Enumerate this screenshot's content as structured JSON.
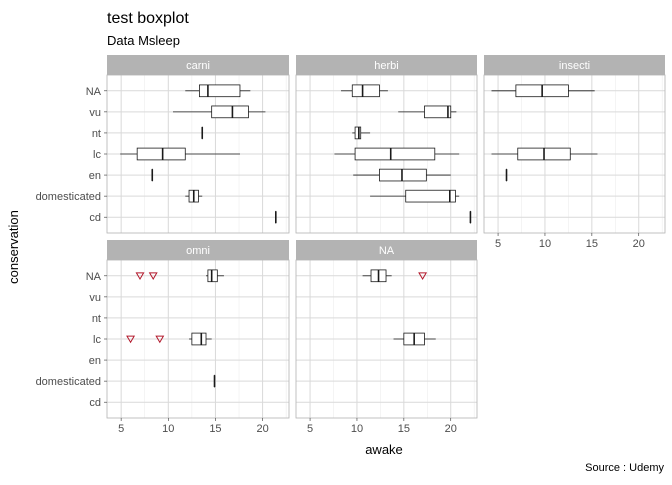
{
  "title": "test boxplot",
  "subtitle": "Data Msleep",
  "caption": "Source : Udemy",
  "chart_data": {
    "type": "boxplot",
    "orientation": "horizontal",
    "xlabel": "awake",
    "ylabel": "conservation",
    "xlim": [
      3.5,
      22.8
    ],
    "xticks": [
      5,
      10,
      15,
      20
    ],
    "xtick_labels": [
      "5",
      "10",
      "15",
      "20"
    ],
    "categories": [
      "NA",
      "vu",
      "nt",
      "lc",
      "en",
      "domesticated",
      "cd"
    ],
    "facets": [
      {
        "name": "carni",
        "boxes": [
          {
            "category": "NA",
            "min": 11.8,
            "q1": 13.3,
            "median": 14.2,
            "q3": 17.6,
            "max": 18.7
          },
          {
            "category": "vu",
            "min": 10.5,
            "q1": 14.6,
            "median": 16.8,
            "q3": 18.5,
            "max": 20.3
          },
          {
            "category": "nt",
            "min": 13.6,
            "q1": 13.6,
            "median": 13.6,
            "q3": 13.6,
            "max": 13.6
          },
          {
            "category": "lc",
            "min": 4.9,
            "q1": 6.7,
            "median": 9.4,
            "q3": 11.8,
            "max": 17.6
          },
          {
            "category": "en",
            "min": 8.3,
            "q1": 8.3,
            "median": 8.3,
            "q3": 8.3,
            "max": 8.3
          },
          {
            "category": "domesticated",
            "min": 11.8,
            "q1": 12.2,
            "median": 12.7,
            "q3": 13.2,
            "max": 13.6
          },
          {
            "category": "cd",
            "min": 21.4,
            "q1": 21.4,
            "median": 21.4,
            "q3": 21.4,
            "max": 21.4
          }
        ],
        "outliers": []
      },
      {
        "name": "herbi",
        "boxes": [
          {
            "category": "NA",
            "min": 8.3,
            "q1": 9.5,
            "median": 10.6,
            "q3": 12.4,
            "max": 13.3
          },
          {
            "category": "vu",
            "min": 14.4,
            "q1": 17.2,
            "median": 19.7,
            "q3": 20.0,
            "max": 20.6
          },
          {
            "category": "nt",
            "min": 9.5,
            "q1": 9.8,
            "median": 10.2,
            "q3": 10.4,
            "max": 11.4
          },
          {
            "category": "lc",
            "min": 7.6,
            "q1": 9.8,
            "median": 13.6,
            "q3": 18.3,
            "max": 20.9
          },
          {
            "category": "en",
            "min": 9.6,
            "q1": 12.4,
            "median": 14.8,
            "q3": 17.4,
            "max": 20.0
          },
          {
            "category": "domesticated",
            "min": 11.4,
            "q1": 15.2,
            "median": 19.9,
            "q3": 20.5,
            "max": 20.9
          },
          {
            "category": "cd",
            "min": 22.1,
            "q1": 22.1,
            "median": 22.1,
            "q3": 22.1,
            "max": 22.1
          }
        ],
        "outliers": []
      },
      {
        "name": "insecti",
        "boxes": [
          {
            "category": "NA",
            "min": 4.3,
            "q1": 6.9,
            "median": 9.7,
            "q3": 12.5,
            "max": 15.3
          },
          {
            "category": "lc",
            "min": 4.3,
            "q1": 7.1,
            "median": 9.9,
            "q3": 12.7,
            "max": 15.6
          },
          {
            "category": "en",
            "min": 5.9,
            "q1": 5.9,
            "median": 5.9,
            "q3": 5.9,
            "max": 5.9
          }
        ],
        "outliers": []
      },
      {
        "name": "omni",
        "boxes": [
          {
            "category": "NA",
            "min": 14.0,
            "q1": 14.2,
            "median": 14.6,
            "q3": 15.2,
            "max": 15.9
          },
          {
            "category": "lc",
            "min": 12.2,
            "q1": 12.5,
            "median": 13.5,
            "q3": 14.0,
            "max": 14.6
          },
          {
            "category": "domesticated",
            "min": 14.9,
            "q1": 14.9,
            "median": 14.9,
            "q3": 14.9,
            "max": 14.9
          }
        ],
        "outliers": [
          {
            "category": "NA",
            "value": 7.0
          },
          {
            "category": "NA",
            "value": 8.4
          },
          {
            "category": "lc",
            "value": 6.0
          },
          {
            "category": "lc",
            "value": 9.1
          }
        ]
      },
      {
        "name": "NA",
        "boxes": [
          {
            "category": "NA",
            "min": 10.6,
            "q1": 11.5,
            "median": 12.3,
            "q3": 13.1,
            "max": 13.7
          },
          {
            "category": "lc",
            "min": 13.9,
            "q1": 15.0,
            "median": 16.1,
            "q3": 17.2,
            "max": 18.4
          }
        ],
        "outliers": [
          {
            "category": "NA",
            "value": 17.0
          }
        ]
      }
    ],
    "grid": true,
    "legend": "none",
    "colors": {
      "panel_background": "#ffffff",
      "panel_border": "#b3b3b3",
      "grid_major": "#d9d9d9",
      "grid_minor": "#ededed",
      "strip_background": "#b3b3b3",
      "strip_text": "#ffffff",
      "box_stroke": "#1a1a1a",
      "box_fill": "#ffffff",
      "outlier_stroke": "#b2182b"
    }
  }
}
